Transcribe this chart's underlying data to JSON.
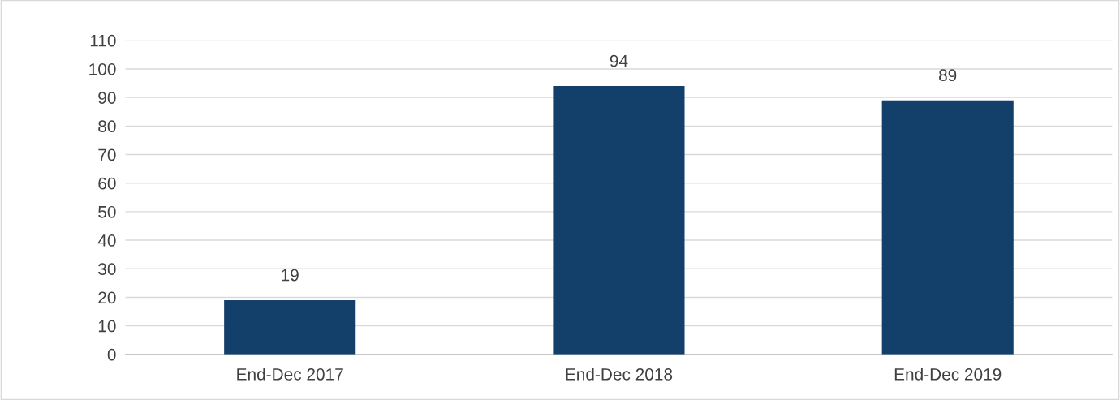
{
  "chart_data": {
    "type": "bar",
    "categories": [
      "End-Dec 2017",
      "End-Dec 2018",
      "End-Dec 2019"
    ],
    "values": [
      19,
      94,
      89
    ],
    "color": "#133f6b",
    "ylim": [
      0,
      110
    ],
    "yticks": [
      0,
      10,
      20,
      30,
      40,
      50,
      60,
      70,
      80,
      90,
      100,
      110
    ],
    "grid": "y",
    "data_labels": true
  }
}
